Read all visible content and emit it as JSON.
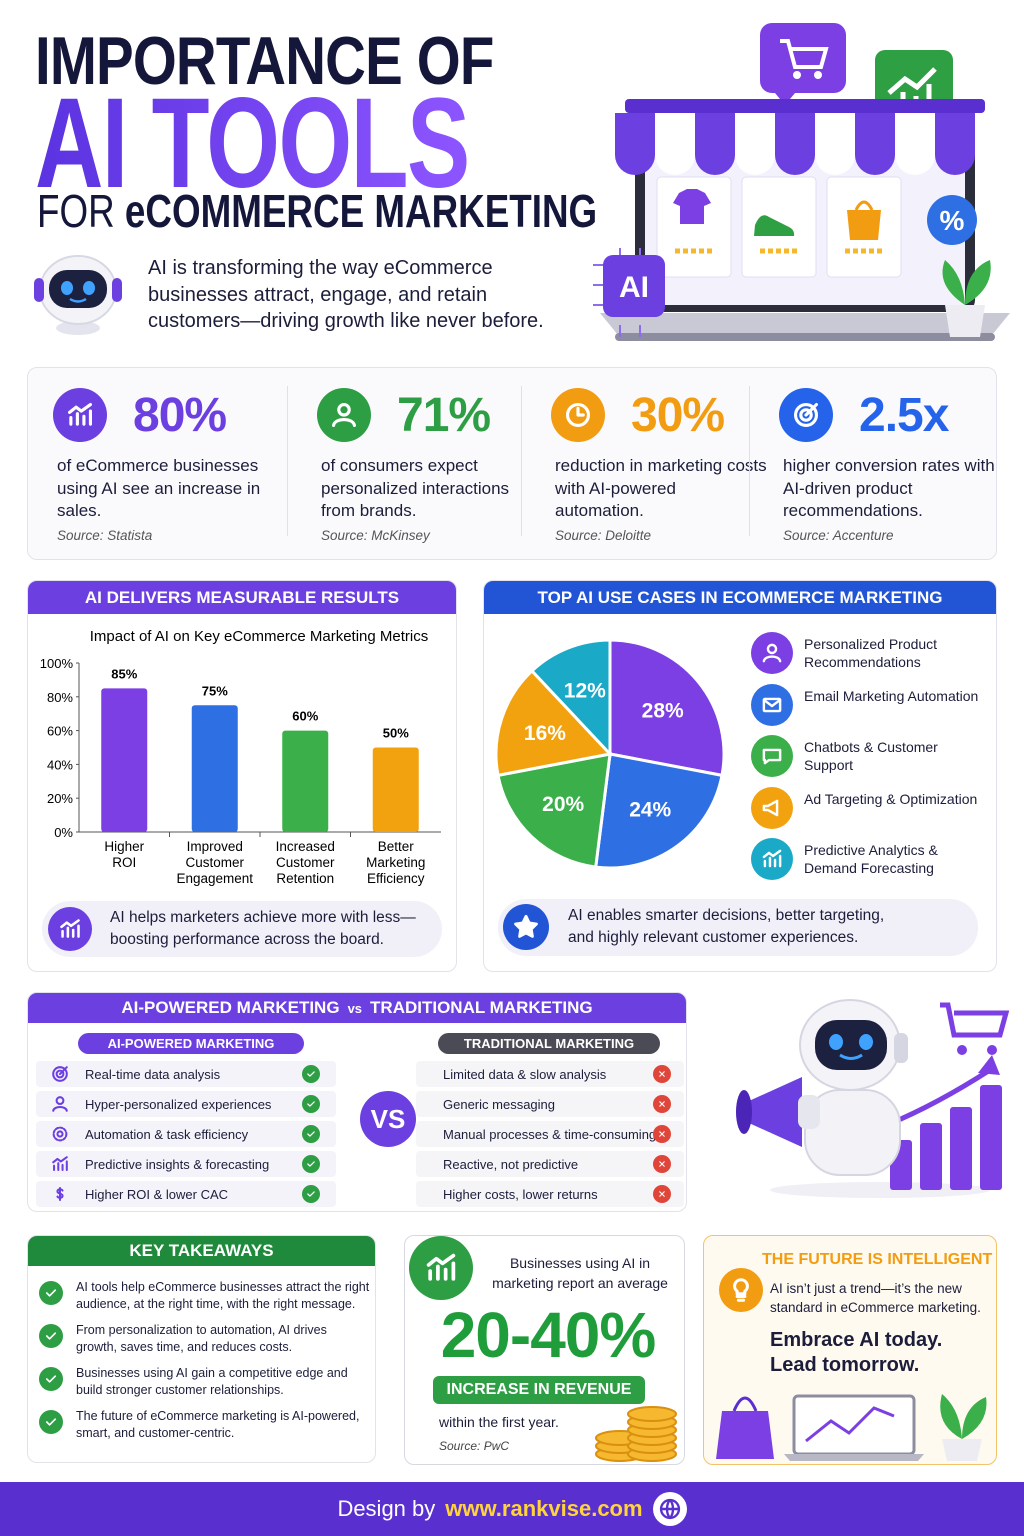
{
  "header": {
    "title_top": "IMPORTANCE OF",
    "title_main": "AI TOOLS",
    "title_for": "FOR",
    "title_sub": "eCOMMERCE MARKETING",
    "intro": "AI is transforming the way eCommerce businesses attract, engage, and retain customers—driving growth like never before.",
    "ai_badge": "AI",
    "percent_badge": "%"
  },
  "stats": [
    {
      "value": "80%",
      "text": "of eCommerce businesses using AI see an increase in sales.",
      "source": "Source: Statista",
      "color": "#6b3fe0"
    },
    {
      "value": "71%",
      "text": "of consumers expect personalized interactions from brands.",
      "source": "Source: McKinsey",
      "color": "#2e9e44"
    },
    {
      "value": "30%",
      "text": "reduction in marketing costs with AI-powered automation.",
      "source": "Source: Deloitte",
      "color": "#f29c11"
    },
    {
      "value": "2.5x",
      "text": "higher conversion rates with AI-driven product recommendations.",
      "source": "Source: Accenture",
      "color": "#2563eb"
    }
  ],
  "chart_data": [
    {
      "type": "bar",
      "section_title": "AI DELIVERS MEASURABLE RESULTS",
      "title": "Impact of AI on Key eCommerce Marketing Metrics",
      "categories": [
        "Higher ROI",
        "Improved Customer Engagement",
        "Increased Customer Retention",
        "Better Marketing Efficiency"
      ],
      "values": [
        85,
        75,
        60,
        50
      ],
      "value_labels": [
        "85%",
        "75%",
        "60%",
        "50%"
      ],
      "colors": [
        "#7b3fe4",
        "#2f6fe4",
        "#3bb04a",
        "#f2a20f"
      ],
      "ylim": [
        0,
        100
      ],
      "yticks": [
        {
          "value": 0,
          "label": "0%"
        },
        {
          "value": 20,
          "label": "20%"
        },
        {
          "value": 40,
          "label": "40%"
        },
        {
          "value": 60,
          "label": "60%"
        },
        {
          "value": 80,
          "label": "80%"
        },
        {
          "value": 100,
          "label": "100%"
        }
      ],
      "grid": false,
      "note": "AI helps marketers achieve more with less—boosting performance across the board."
    },
    {
      "type": "pie",
      "section_title": "TOP AI USE CASES IN ECOMMERCE MARKETING",
      "categories": [
        "Personalized Product Recommendations",
        "Email Marketing Automation",
        "Chatbots & Customer Support",
        "Ad Targeting & Optimization",
        "Predictive Analytics & Demand Forecasting"
      ],
      "values": [
        28,
        24,
        20,
        16,
        12
      ],
      "value_labels": [
        "28%",
        "24%",
        "20%",
        "16%",
        "12%"
      ],
      "colors": [
        "#7b3fe4",
        "#2f6fe4",
        "#3bb04a",
        "#f2a20f",
        "#1ba9c8"
      ],
      "note": "AI enables smarter decisions, better targeting, and highly relevant customer experiences."
    }
  ],
  "comparison": {
    "title_left": "AI-POWERED MARKETING",
    "title_vs": "vs",
    "title_right": "TRADITIONAL MARKETING",
    "vs": "VS",
    "left": {
      "header": "AI-POWERED MARKETING",
      "items": [
        "Real-time data analysis",
        "Hyper-personalized experiences",
        "Automation & task efficiency",
        "Predictive insights & forecasting",
        "Higher ROI & lower CAC"
      ]
    },
    "right": {
      "header": "TRADITIONAL MARKETING",
      "items": [
        "Limited data & slow analysis",
        "Generic messaging",
        "Manual processes & time-consuming",
        "Reactive, not predictive",
        "Higher costs, lower returns"
      ]
    }
  },
  "takeaways": {
    "title": "KEY TAKEAWAYS",
    "items": [
      "AI tools help eCommerce businesses attract the right audience, at the right time, with the right message.",
      "From personalization to automation, AI drives growth, saves time, and reduces costs.",
      "Businesses using AI gain a competitive edge and build stronger customer relationships.",
      "The future of eCommerce marketing is AI-powered, smart, and customer-centric."
    ]
  },
  "revenue": {
    "intro": "Businesses using AI in marketing report an average",
    "figure": "20-40%",
    "badge": "INCREASE IN REVENUE",
    "period": "within the first year.",
    "source": "Source: PwC"
  },
  "future": {
    "title": "THE FUTURE IS INTELLIGENT",
    "text": "AI isn’t just a trend—it’s the new standard in eCommerce marketing.",
    "cta_line1": "Embrace AI today.",
    "cta_line2": "Lead tomorrow."
  },
  "footer": {
    "prefix": "Design by",
    "url": "www.rankvise.com"
  }
}
